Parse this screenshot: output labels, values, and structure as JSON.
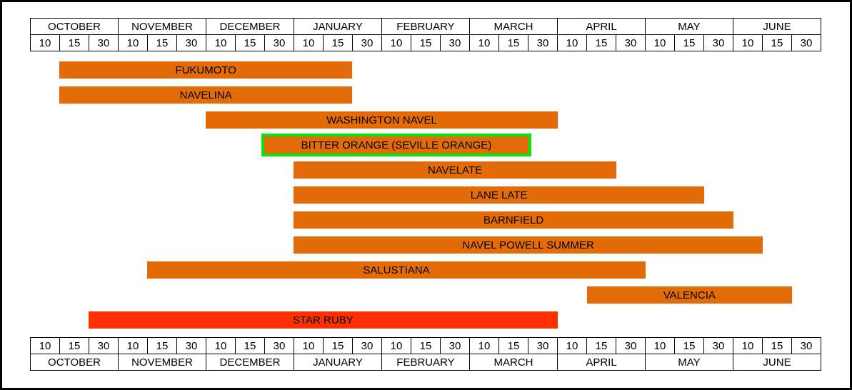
{
  "chart_data": {
    "type": "bar",
    "subtype": "gantt-seasonal-calendar",
    "title": "",
    "xlabel": "",
    "ylabel": "",
    "legend": "none",
    "grid": "off",
    "axis_layout": "month header with 10/15/30 sub-ticks, repeated above and below bars",
    "months": [
      "OCTOBER",
      "NOVEMBER",
      "DECEMBER",
      "JANUARY",
      "FEBRUARY",
      "MARCH",
      "APRIL",
      "MAY",
      "JUNE"
    ],
    "ticks_per_month": [
      "10",
      "15",
      "30"
    ],
    "cells_total": 27,
    "colors": {
      "bar_default": "#E36C09",
      "bar_star_ruby": "#FF3000",
      "highlight_border": "#00E80C",
      "text": "#000000",
      "grid_lines": "#000000",
      "background": "#FFFFFF"
    },
    "series": [
      {
        "label": "FUKUMOTO",
        "start_cell": 1,
        "end_cell": 11,
        "start_label": "OCTOBER 15",
        "end_label": "JANUARY 30",
        "color": "#E36C09",
        "highlighted": false
      },
      {
        "label": "NAVELINA",
        "start_cell": 1,
        "end_cell": 11,
        "start_label": "OCTOBER 15",
        "end_label": "JANUARY 30",
        "color": "#E36C09",
        "highlighted": false
      },
      {
        "label": "WASHINGTON NAVEL",
        "start_cell": 6,
        "end_cell": 18,
        "start_label": "DECEMBER 10",
        "end_label": "APRIL 10",
        "color": "#E36C09",
        "highlighted": false
      },
      {
        "label": "BITTER ORANGE (SEVILLE ORANGE)",
        "start_cell": 8,
        "end_cell": 17,
        "start_label": "DECEMBER 30",
        "end_label": "MARCH 30",
        "color": "#E36C09",
        "highlighted": true
      },
      {
        "label": "NAVELATE",
        "start_cell": 9,
        "end_cell": 20,
        "start_label": "JANUARY 10",
        "end_label": "APRIL 30",
        "color": "#E36C09",
        "highlighted": false
      },
      {
        "label": "LANE LATE",
        "start_cell": 9,
        "end_cell": 23,
        "start_label": "JANUARY 10",
        "end_label": "MAY 30",
        "color": "#E36C09",
        "highlighted": false
      },
      {
        "label": "BARNFIELD",
        "start_cell": 9,
        "end_cell": 24,
        "start_label": "JANUARY 10",
        "end_label": "JUNE 10",
        "color": "#E36C09",
        "highlighted": false
      },
      {
        "label": "NAVEL POWELL SUMMER",
        "start_cell": 9,
        "end_cell": 25,
        "start_label": "JANUARY 10",
        "end_label": "JUNE 15",
        "color": "#E36C09",
        "highlighted": false
      },
      {
        "label": "SALUSTIANA",
        "start_cell": 4,
        "end_cell": 21,
        "start_label": "NOVEMBER 15",
        "end_label": "MAY 10",
        "color": "#E36C09",
        "highlighted": false
      },
      {
        "label": "VALENCIA",
        "start_cell": 19,
        "end_cell": 26,
        "start_label": "APRIL 15",
        "end_label": "JUNE 30",
        "color": "#E36C09",
        "highlighted": false
      },
      {
        "label": "STAR RUBY",
        "start_cell": 2,
        "end_cell": 18,
        "start_label": "OCTOBER 30",
        "end_label": "APRIL 10",
        "color": "#FF3000",
        "highlighted": false
      }
    ]
  }
}
